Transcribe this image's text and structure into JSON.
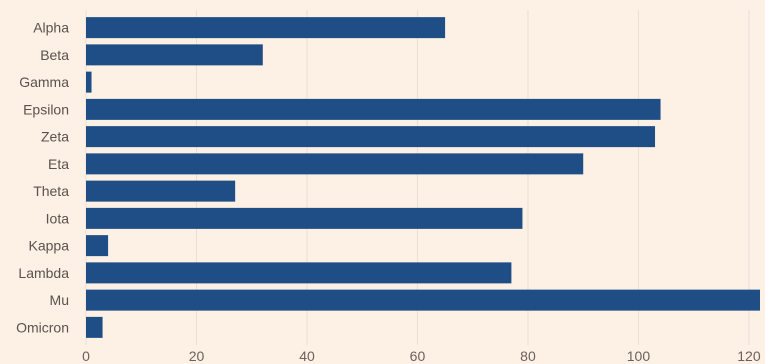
{
  "chart_data": {
    "type": "bar",
    "orientation": "horizontal",
    "categories": [
      "Alpha",
      "Beta",
      "Gamma",
      "Epsilon",
      "Zeta",
      "Eta",
      "Theta",
      "Iota",
      "Kappa",
      "Lambda",
      "Mu",
      "Omicron"
    ],
    "values": [
      65,
      32,
      1,
      104,
      103,
      90,
      27,
      79,
      4,
      77,
      122,
      3
    ],
    "xlim": [
      0,
      122
    ],
    "xticks": [
      0,
      20,
      40,
      60,
      80,
      100,
      120
    ],
    "title": "",
    "xlabel": "",
    "ylabel": "",
    "grid": "vertical",
    "bar_color": "#1f4e86",
    "background_color": "#fdf1e6",
    "grid_color": "#eadfd3"
  }
}
